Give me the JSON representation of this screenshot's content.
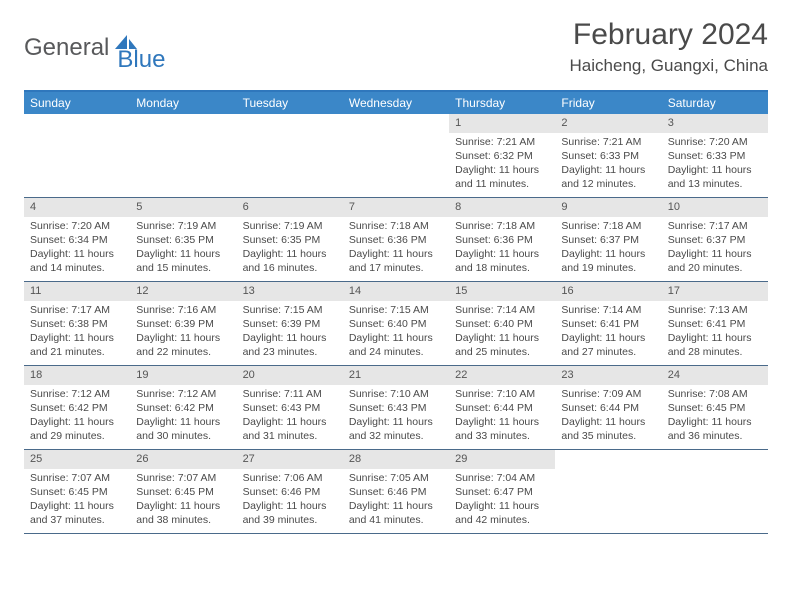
{
  "logo": {
    "text1": "General",
    "text2": "Blue",
    "text1_color": "#58595b",
    "text2_color": "#2f77bc",
    "icon_fill": "#2f77bc"
  },
  "header": {
    "month_title": "February 2024",
    "location": "Haicheng, Guangxi, China"
  },
  "colors": {
    "header_bar": "#3b87c8",
    "header_border_top": "#2f77bc",
    "daynum_bg": "#e6e6e6",
    "row_border": "#4a6a8a",
    "text": "#4a4a4a"
  },
  "day_labels": [
    "Sunday",
    "Monday",
    "Tuesday",
    "Wednesday",
    "Thursday",
    "Friday",
    "Saturday"
  ],
  "weeks": [
    [
      {
        "blank": true
      },
      {
        "blank": true
      },
      {
        "blank": true
      },
      {
        "blank": true
      },
      {
        "n": "1",
        "sunrise": "Sunrise: 7:21 AM",
        "sunset": "Sunset: 6:32 PM",
        "daylight1": "Daylight: 11 hours",
        "daylight2": "and 11 minutes."
      },
      {
        "n": "2",
        "sunrise": "Sunrise: 7:21 AM",
        "sunset": "Sunset: 6:33 PM",
        "daylight1": "Daylight: 11 hours",
        "daylight2": "and 12 minutes."
      },
      {
        "n": "3",
        "sunrise": "Sunrise: 7:20 AM",
        "sunset": "Sunset: 6:33 PM",
        "daylight1": "Daylight: 11 hours",
        "daylight2": "and 13 minutes."
      }
    ],
    [
      {
        "n": "4",
        "sunrise": "Sunrise: 7:20 AM",
        "sunset": "Sunset: 6:34 PM",
        "daylight1": "Daylight: 11 hours",
        "daylight2": "and 14 minutes."
      },
      {
        "n": "5",
        "sunrise": "Sunrise: 7:19 AM",
        "sunset": "Sunset: 6:35 PM",
        "daylight1": "Daylight: 11 hours",
        "daylight2": "and 15 minutes."
      },
      {
        "n": "6",
        "sunrise": "Sunrise: 7:19 AM",
        "sunset": "Sunset: 6:35 PM",
        "daylight1": "Daylight: 11 hours",
        "daylight2": "and 16 minutes."
      },
      {
        "n": "7",
        "sunrise": "Sunrise: 7:18 AM",
        "sunset": "Sunset: 6:36 PM",
        "daylight1": "Daylight: 11 hours",
        "daylight2": "and 17 minutes."
      },
      {
        "n": "8",
        "sunrise": "Sunrise: 7:18 AM",
        "sunset": "Sunset: 6:36 PM",
        "daylight1": "Daylight: 11 hours",
        "daylight2": "and 18 minutes."
      },
      {
        "n": "9",
        "sunrise": "Sunrise: 7:18 AM",
        "sunset": "Sunset: 6:37 PM",
        "daylight1": "Daylight: 11 hours",
        "daylight2": "and 19 minutes."
      },
      {
        "n": "10",
        "sunrise": "Sunrise: 7:17 AM",
        "sunset": "Sunset: 6:37 PM",
        "daylight1": "Daylight: 11 hours",
        "daylight2": "and 20 minutes."
      }
    ],
    [
      {
        "n": "11",
        "sunrise": "Sunrise: 7:17 AM",
        "sunset": "Sunset: 6:38 PM",
        "daylight1": "Daylight: 11 hours",
        "daylight2": "and 21 minutes."
      },
      {
        "n": "12",
        "sunrise": "Sunrise: 7:16 AM",
        "sunset": "Sunset: 6:39 PM",
        "daylight1": "Daylight: 11 hours",
        "daylight2": "and 22 minutes."
      },
      {
        "n": "13",
        "sunrise": "Sunrise: 7:15 AM",
        "sunset": "Sunset: 6:39 PM",
        "daylight1": "Daylight: 11 hours",
        "daylight2": "and 23 minutes."
      },
      {
        "n": "14",
        "sunrise": "Sunrise: 7:15 AM",
        "sunset": "Sunset: 6:40 PM",
        "daylight1": "Daylight: 11 hours",
        "daylight2": "and 24 minutes."
      },
      {
        "n": "15",
        "sunrise": "Sunrise: 7:14 AM",
        "sunset": "Sunset: 6:40 PM",
        "daylight1": "Daylight: 11 hours",
        "daylight2": "and 25 minutes."
      },
      {
        "n": "16",
        "sunrise": "Sunrise: 7:14 AM",
        "sunset": "Sunset: 6:41 PM",
        "daylight1": "Daylight: 11 hours",
        "daylight2": "and 27 minutes."
      },
      {
        "n": "17",
        "sunrise": "Sunrise: 7:13 AM",
        "sunset": "Sunset: 6:41 PM",
        "daylight1": "Daylight: 11 hours",
        "daylight2": "and 28 minutes."
      }
    ],
    [
      {
        "n": "18",
        "sunrise": "Sunrise: 7:12 AM",
        "sunset": "Sunset: 6:42 PM",
        "daylight1": "Daylight: 11 hours",
        "daylight2": "and 29 minutes."
      },
      {
        "n": "19",
        "sunrise": "Sunrise: 7:12 AM",
        "sunset": "Sunset: 6:42 PM",
        "daylight1": "Daylight: 11 hours",
        "daylight2": "and 30 minutes."
      },
      {
        "n": "20",
        "sunrise": "Sunrise: 7:11 AM",
        "sunset": "Sunset: 6:43 PM",
        "daylight1": "Daylight: 11 hours",
        "daylight2": "and 31 minutes."
      },
      {
        "n": "21",
        "sunrise": "Sunrise: 7:10 AM",
        "sunset": "Sunset: 6:43 PM",
        "daylight1": "Daylight: 11 hours",
        "daylight2": "and 32 minutes."
      },
      {
        "n": "22",
        "sunrise": "Sunrise: 7:10 AM",
        "sunset": "Sunset: 6:44 PM",
        "daylight1": "Daylight: 11 hours",
        "daylight2": "and 33 minutes."
      },
      {
        "n": "23",
        "sunrise": "Sunrise: 7:09 AM",
        "sunset": "Sunset: 6:44 PM",
        "daylight1": "Daylight: 11 hours",
        "daylight2": "and 35 minutes."
      },
      {
        "n": "24",
        "sunrise": "Sunrise: 7:08 AM",
        "sunset": "Sunset: 6:45 PM",
        "daylight1": "Daylight: 11 hours",
        "daylight2": "and 36 minutes."
      }
    ],
    [
      {
        "n": "25",
        "sunrise": "Sunrise: 7:07 AM",
        "sunset": "Sunset: 6:45 PM",
        "daylight1": "Daylight: 11 hours",
        "daylight2": "and 37 minutes."
      },
      {
        "n": "26",
        "sunrise": "Sunrise: 7:07 AM",
        "sunset": "Sunset: 6:45 PM",
        "daylight1": "Daylight: 11 hours",
        "daylight2": "and 38 minutes."
      },
      {
        "n": "27",
        "sunrise": "Sunrise: 7:06 AM",
        "sunset": "Sunset: 6:46 PM",
        "daylight1": "Daylight: 11 hours",
        "daylight2": "and 39 minutes."
      },
      {
        "n": "28",
        "sunrise": "Sunrise: 7:05 AM",
        "sunset": "Sunset: 6:46 PM",
        "daylight1": "Daylight: 11 hours",
        "daylight2": "and 41 minutes."
      },
      {
        "n": "29",
        "sunrise": "Sunrise: 7:04 AM",
        "sunset": "Sunset: 6:47 PM",
        "daylight1": "Daylight: 11 hours",
        "daylight2": "and 42 minutes."
      },
      {
        "blank": true
      },
      {
        "blank": true
      }
    ]
  ]
}
